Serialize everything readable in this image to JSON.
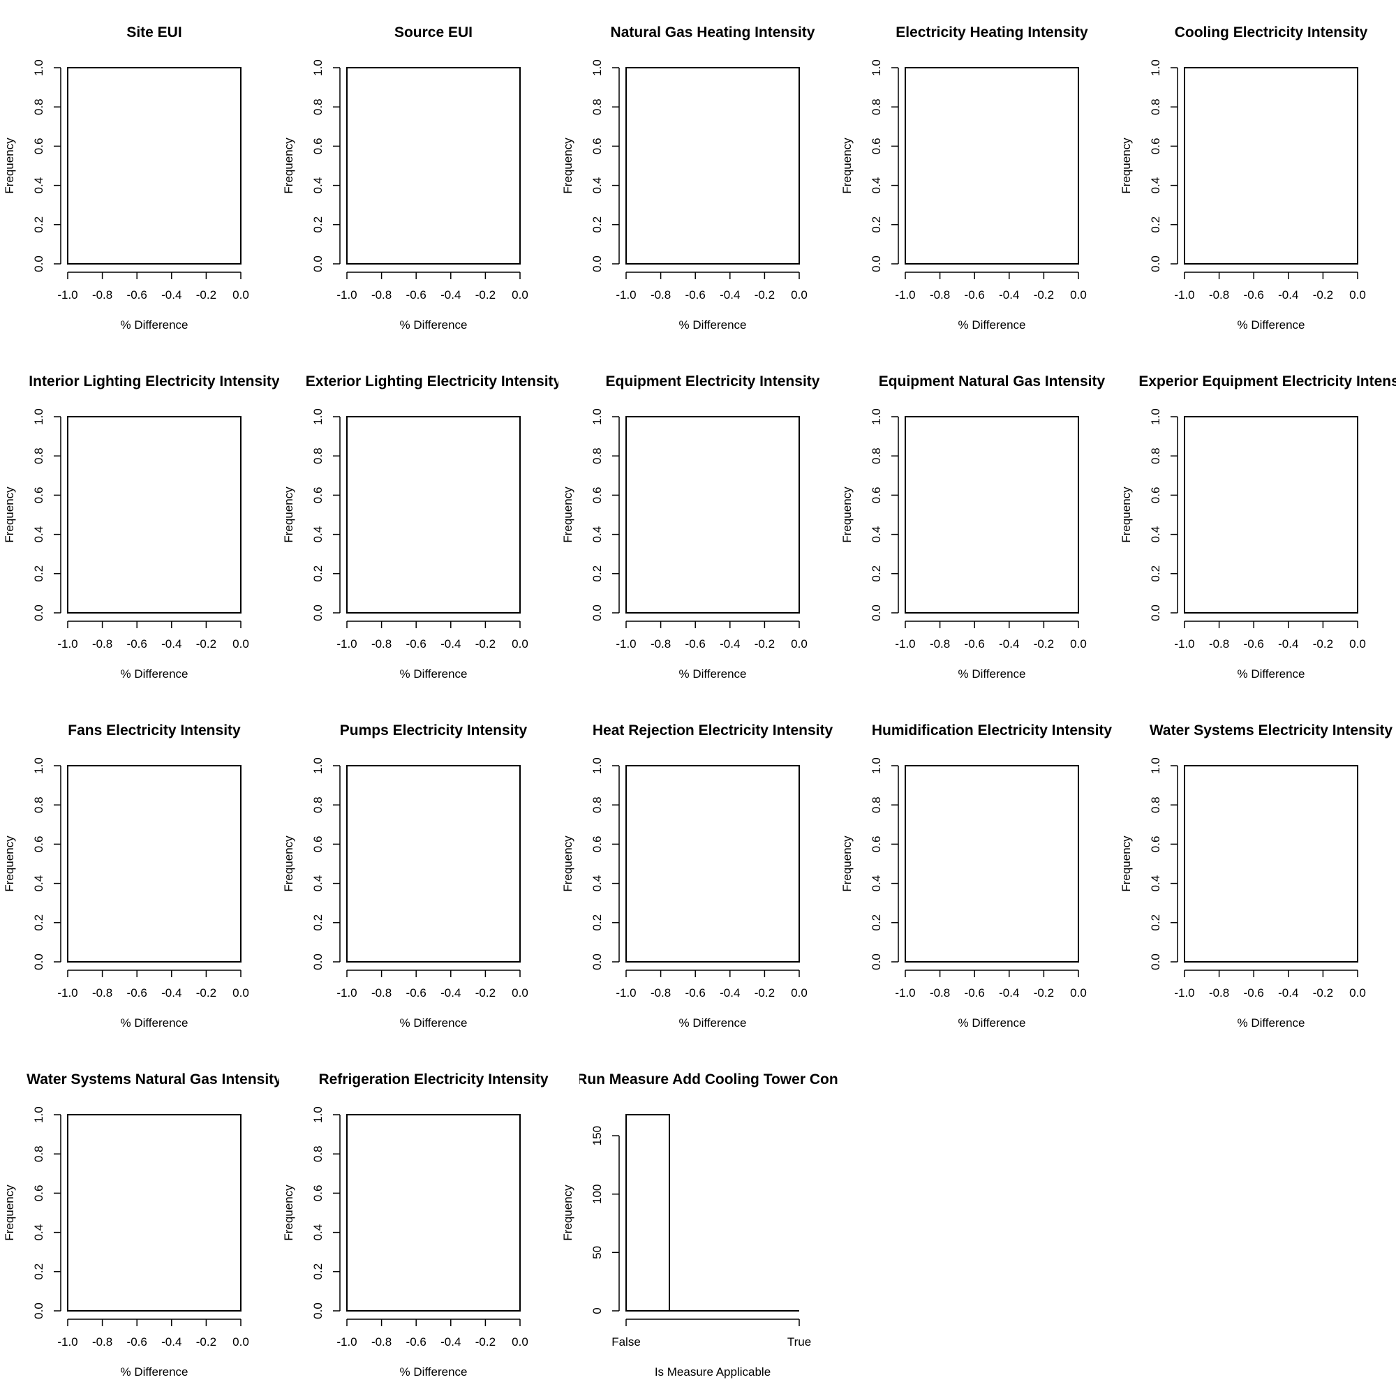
{
  "chart_data": [
    {
      "type": "bar",
      "title": "Site EUI",
      "xlabel": "% Difference",
      "ylabel": "Frequency",
      "xlim": [
        -1.0,
        0.0
      ],
      "ylim": [
        0.0,
        1.0
      ],
      "xticks": [
        "-1.0",
        "-0.8",
        "-0.6",
        "-0.4",
        "-0.2",
        "0.0"
      ],
      "yticks": [
        "0.0",
        "0.2",
        "0.4",
        "0.6",
        "0.8",
        "1.0"
      ],
      "values": []
    },
    {
      "type": "bar",
      "title": "Source EUI",
      "xlabel": "% Difference",
      "ylabel": "Frequency",
      "xlim": [
        -1.0,
        0.0
      ],
      "ylim": [
        0.0,
        1.0
      ],
      "xticks": [
        "-1.0",
        "-0.8",
        "-0.6",
        "-0.4",
        "-0.2",
        "0.0"
      ],
      "yticks": [
        "0.0",
        "0.2",
        "0.4",
        "0.6",
        "0.8",
        "1.0"
      ],
      "values": []
    },
    {
      "type": "bar",
      "title": "Natural Gas Heating Intensity",
      "xlabel": "% Difference",
      "ylabel": "Frequency",
      "xlim": [
        -1.0,
        0.0
      ],
      "ylim": [
        0.0,
        1.0
      ],
      "xticks": [
        "-1.0",
        "-0.8",
        "-0.6",
        "-0.4",
        "-0.2",
        "0.0"
      ],
      "yticks": [
        "0.0",
        "0.2",
        "0.4",
        "0.6",
        "0.8",
        "1.0"
      ],
      "values": []
    },
    {
      "type": "bar",
      "title": "Electricity Heating Intensity",
      "xlabel": "% Difference",
      "ylabel": "Frequency",
      "xlim": [
        -1.0,
        0.0
      ],
      "ylim": [
        0.0,
        1.0
      ],
      "xticks": [
        "-1.0",
        "-0.8",
        "-0.6",
        "-0.4",
        "-0.2",
        "0.0"
      ],
      "yticks": [
        "0.0",
        "0.2",
        "0.4",
        "0.6",
        "0.8",
        "1.0"
      ],
      "values": []
    },
    {
      "type": "bar",
      "title": "Cooling Electricity Intensity",
      "xlabel": "% Difference",
      "ylabel": "Frequency",
      "xlim": [
        -1.0,
        0.0
      ],
      "ylim": [
        0.0,
        1.0
      ],
      "xticks": [
        "-1.0",
        "-0.8",
        "-0.6",
        "-0.4",
        "-0.2",
        "0.0"
      ],
      "yticks": [
        "0.0",
        "0.2",
        "0.4",
        "0.6",
        "0.8",
        "1.0"
      ],
      "values": []
    },
    {
      "type": "bar",
      "title": "Interior Lighting Electricity Intensity",
      "xlabel": "% Difference",
      "ylabel": "Frequency",
      "xlim": [
        -1.0,
        0.0
      ],
      "ylim": [
        0.0,
        1.0
      ],
      "xticks": [
        "-1.0",
        "-0.8",
        "-0.6",
        "-0.4",
        "-0.2",
        "0.0"
      ],
      "yticks": [
        "0.0",
        "0.2",
        "0.4",
        "0.6",
        "0.8",
        "1.0"
      ],
      "values": []
    },
    {
      "type": "bar",
      "title": "Exterior Lighting Electricity Intensity",
      "xlabel": "% Difference",
      "ylabel": "Frequency",
      "xlim": [
        -1.0,
        0.0
      ],
      "ylim": [
        0.0,
        1.0
      ],
      "xticks": [
        "-1.0",
        "-0.8",
        "-0.6",
        "-0.4",
        "-0.2",
        "0.0"
      ],
      "yticks": [
        "0.0",
        "0.2",
        "0.4",
        "0.6",
        "0.8",
        "1.0"
      ],
      "values": []
    },
    {
      "type": "bar",
      "title": "Equipment Electricity Intensity",
      "xlabel": "% Difference",
      "ylabel": "Frequency",
      "xlim": [
        -1.0,
        0.0
      ],
      "ylim": [
        0.0,
        1.0
      ],
      "xticks": [
        "-1.0",
        "-0.8",
        "-0.6",
        "-0.4",
        "-0.2",
        "0.0"
      ],
      "yticks": [
        "0.0",
        "0.2",
        "0.4",
        "0.6",
        "0.8",
        "1.0"
      ],
      "values": []
    },
    {
      "type": "bar",
      "title": "Equipment Natural Gas Intensity",
      "xlabel": "% Difference",
      "ylabel": "Frequency",
      "xlim": [
        -1.0,
        0.0
      ],
      "ylim": [
        0.0,
        1.0
      ],
      "xticks": [
        "-1.0",
        "-0.8",
        "-0.6",
        "-0.4",
        "-0.2",
        "0.0"
      ],
      "yticks": [
        "0.0",
        "0.2",
        "0.4",
        "0.6",
        "0.8",
        "1.0"
      ],
      "values": []
    },
    {
      "type": "bar",
      "title": "Experior Equipment Electricity Intensi",
      "xlabel": "% Difference",
      "ylabel": "Frequency",
      "xlim": [
        -1.0,
        0.0
      ],
      "ylim": [
        0.0,
        1.0
      ],
      "xticks": [
        "-1.0",
        "-0.8",
        "-0.6",
        "-0.4",
        "-0.2",
        "0.0"
      ],
      "yticks": [
        "0.0",
        "0.2",
        "0.4",
        "0.6",
        "0.8",
        "1.0"
      ],
      "values": []
    },
    {
      "type": "bar",
      "title": "Fans Electricity Intensity",
      "xlabel": "% Difference",
      "ylabel": "Frequency",
      "xlim": [
        -1.0,
        0.0
      ],
      "ylim": [
        0.0,
        1.0
      ],
      "xticks": [
        "-1.0",
        "-0.8",
        "-0.6",
        "-0.4",
        "-0.2",
        "0.0"
      ],
      "yticks": [
        "0.0",
        "0.2",
        "0.4",
        "0.6",
        "0.8",
        "1.0"
      ],
      "values": []
    },
    {
      "type": "bar",
      "title": "Pumps Electricity Intensity",
      "xlabel": "% Difference",
      "ylabel": "Frequency",
      "xlim": [
        -1.0,
        0.0
      ],
      "ylim": [
        0.0,
        1.0
      ],
      "xticks": [
        "-1.0",
        "-0.8",
        "-0.6",
        "-0.4",
        "-0.2",
        "0.0"
      ],
      "yticks": [
        "0.0",
        "0.2",
        "0.4",
        "0.6",
        "0.8",
        "1.0"
      ],
      "values": []
    },
    {
      "type": "bar",
      "title": "Heat Rejection Electricity Intensity",
      "xlabel": "% Difference",
      "ylabel": "Frequency",
      "xlim": [
        -1.0,
        0.0
      ],
      "ylim": [
        0.0,
        1.0
      ],
      "xticks": [
        "-1.0",
        "-0.8",
        "-0.6",
        "-0.4",
        "-0.2",
        "0.0"
      ],
      "yticks": [
        "0.0",
        "0.2",
        "0.4",
        "0.6",
        "0.8",
        "1.0"
      ],
      "values": []
    },
    {
      "type": "bar",
      "title": "Humidification Electricity Intensity",
      "xlabel": "% Difference",
      "ylabel": "Frequency",
      "xlim": [
        -1.0,
        0.0
      ],
      "ylim": [
        0.0,
        1.0
      ],
      "xticks": [
        "-1.0",
        "-0.8",
        "-0.6",
        "-0.4",
        "-0.2",
        "0.0"
      ],
      "yticks": [
        "0.0",
        "0.2",
        "0.4",
        "0.6",
        "0.8",
        "1.0"
      ],
      "values": []
    },
    {
      "type": "bar",
      "title": "Water Systems Electricity Intensity",
      "xlabel": "% Difference",
      "ylabel": "Frequency",
      "xlim": [
        -1.0,
        0.0
      ],
      "ylim": [
        0.0,
        1.0
      ],
      "xticks": [
        "-1.0",
        "-0.8",
        "-0.6",
        "-0.4",
        "-0.2",
        "0.0"
      ],
      "yticks": [
        "0.0",
        "0.2",
        "0.4",
        "0.6",
        "0.8",
        "1.0"
      ],
      "values": []
    },
    {
      "type": "bar",
      "title": "Water Systems Natural Gas Intensity",
      "xlabel": "% Difference",
      "ylabel": "Frequency",
      "xlim": [
        -1.0,
        0.0
      ],
      "ylim": [
        0.0,
        1.0
      ],
      "xticks": [
        "-1.0",
        "-0.8",
        "-0.6",
        "-0.4",
        "-0.2",
        "0.0"
      ],
      "yticks": [
        "0.0",
        "0.2",
        "0.4",
        "0.6",
        "0.8",
        "1.0"
      ],
      "values": []
    },
    {
      "type": "bar",
      "title": "Refrigeration Electricity Intensity",
      "xlabel": "% Difference",
      "ylabel": "Frequency",
      "xlim": [
        -1.0,
        0.0
      ],
      "ylim": [
        0.0,
        1.0
      ],
      "xticks": [
        "-1.0",
        "-0.8",
        "-0.6",
        "-0.4",
        "-0.2",
        "0.0"
      ],
      "yticks": [
        "0.0",
        "0.2",
        "0.4",
        "0.6",
        "0.8",
        "1.0"
      ],
      "values": []
    },
    {
      "type": "bar",
      "title": "Run Measure Add Cooling Tower Contr",
      "xlabel": "Is Measure Applicable",
      "ylabel": "Frequency",
      "ylim": [
        0,
        168
      ],
      "xticks": [
        "False",
        "True"
      ],
      "yticks": [
        "0",
        "50",
        "100",
        "150"
      ],
      "categories": [
        "False",
        "True"
      ],
      "values": [
        168,
        0
      ]
    }
  ]
}
